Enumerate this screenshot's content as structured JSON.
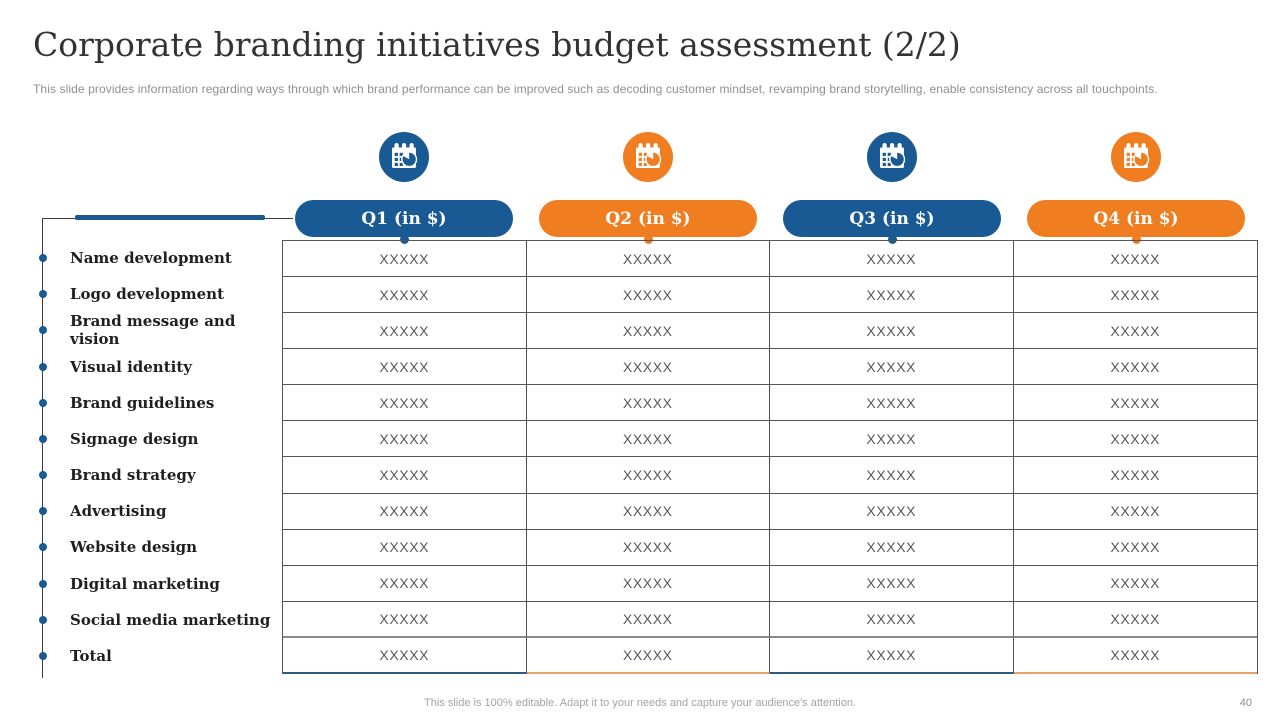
{
  "slide": {
    "title": "Corporate branding initiatives budget assessment (2/2)",
    "subtitle": "This slide provides information regarding ways through which brand performance can be improved such as decoding customer mindset, revamping brand storytelling, enable consistency across all touchpoints.",
    "footer_note": "This slide is 100% editable. Adapt it to your needs and capture your audience's attention.",
    "page_number": "40"
  },
  "colors": {
    "blue": "#1A5A94",
    "orange": "#F07D20",
    "bottom_blue": "#2B5A7D",
    "bottom_orange": "#E3A468"
  },
  "icons": {
    "header_icon": "calendar-chart-icon",
    "bullet": "dot-bullet-icon"
  },
  "table": {
    "columns": [
      {
        "label": "Q1 (in $)",
        "accent": "blue"
      },
      {
        "label": "Q2 (in $)",
        "accent": "orange"
      },
      {
        "label": "Q3 (in $)",
        "accent": "blue"
      },
      {
        "label": "Q4 (in $)",
        "accent": "orange"
      }
    ],
    "rows": [
      {
        "label": "Name development",
        "values": [
          "XXXXX",
          "XXXXX",
          "XXXXX",
          "XXXXX"
        ]
      },
      {
        "label": "Logo development",
        "values": [
          "XXXXX",
          "XXXXX",
          "XXXXX",
          "XXXXX"
        ]
      },
      {
        "label": "Brand message and vision",
        "values": [
          "XXXXX",
          "XXXXX",
          "XXXXX",
          "XXXXX"
        ]
      },
      {
        "label": "Visual identity",
        "values": [
          "XXXXX",
          "XXXXX",
          "XXXXX",
          "XXXXX"
        ]
      },
      {
        "label": "Brand guidelines",
        "values": [
          "XXXXX",
          "XXXXX",
          "XXXXX",
          "XXXXX"
        ]
      },
      {
        "label": "Signage design",
        "values": [
          "XXXXX",
          "XXXXX",
          "XXXXX",
          "XXXXX"
        ]
      },
      {
        "label": "Brand strategy",
        "values": [
          "XXXXX",
          "XXXXX",
          "XXXXX",
          "XXXXX"
        ]
      },
      {
        "label": "Advertising",
        "values": [
          "XXXXX",
          "XXXXX",
          "XXXXX",
          "XXXXX"
        ]
      },
      {
        "label": "Website design",
        "values": [
          "XXXXX",
          "XXXXX",
          "XXXXX",
          "XXXXX"
        ]
      },
      {
        "label": "Digital marketing",
        "values": [
          "XXXXX",
          "XXXXX",
          "XXXXX",
          "XXXXX"
        ]
      },
      {
        "label": "Social media marketing",
        "values": [
          "XXXXX",
          "XXXXX",
          "XXXXX",
          "XXXXX"
        ]
      },
      {
        "label": "Total",
        "values": [
          "XXXXX",
          "XXXXX",
          "XXXXX",
          "XXXXX"
        ]
      }
    ]
  }
}
